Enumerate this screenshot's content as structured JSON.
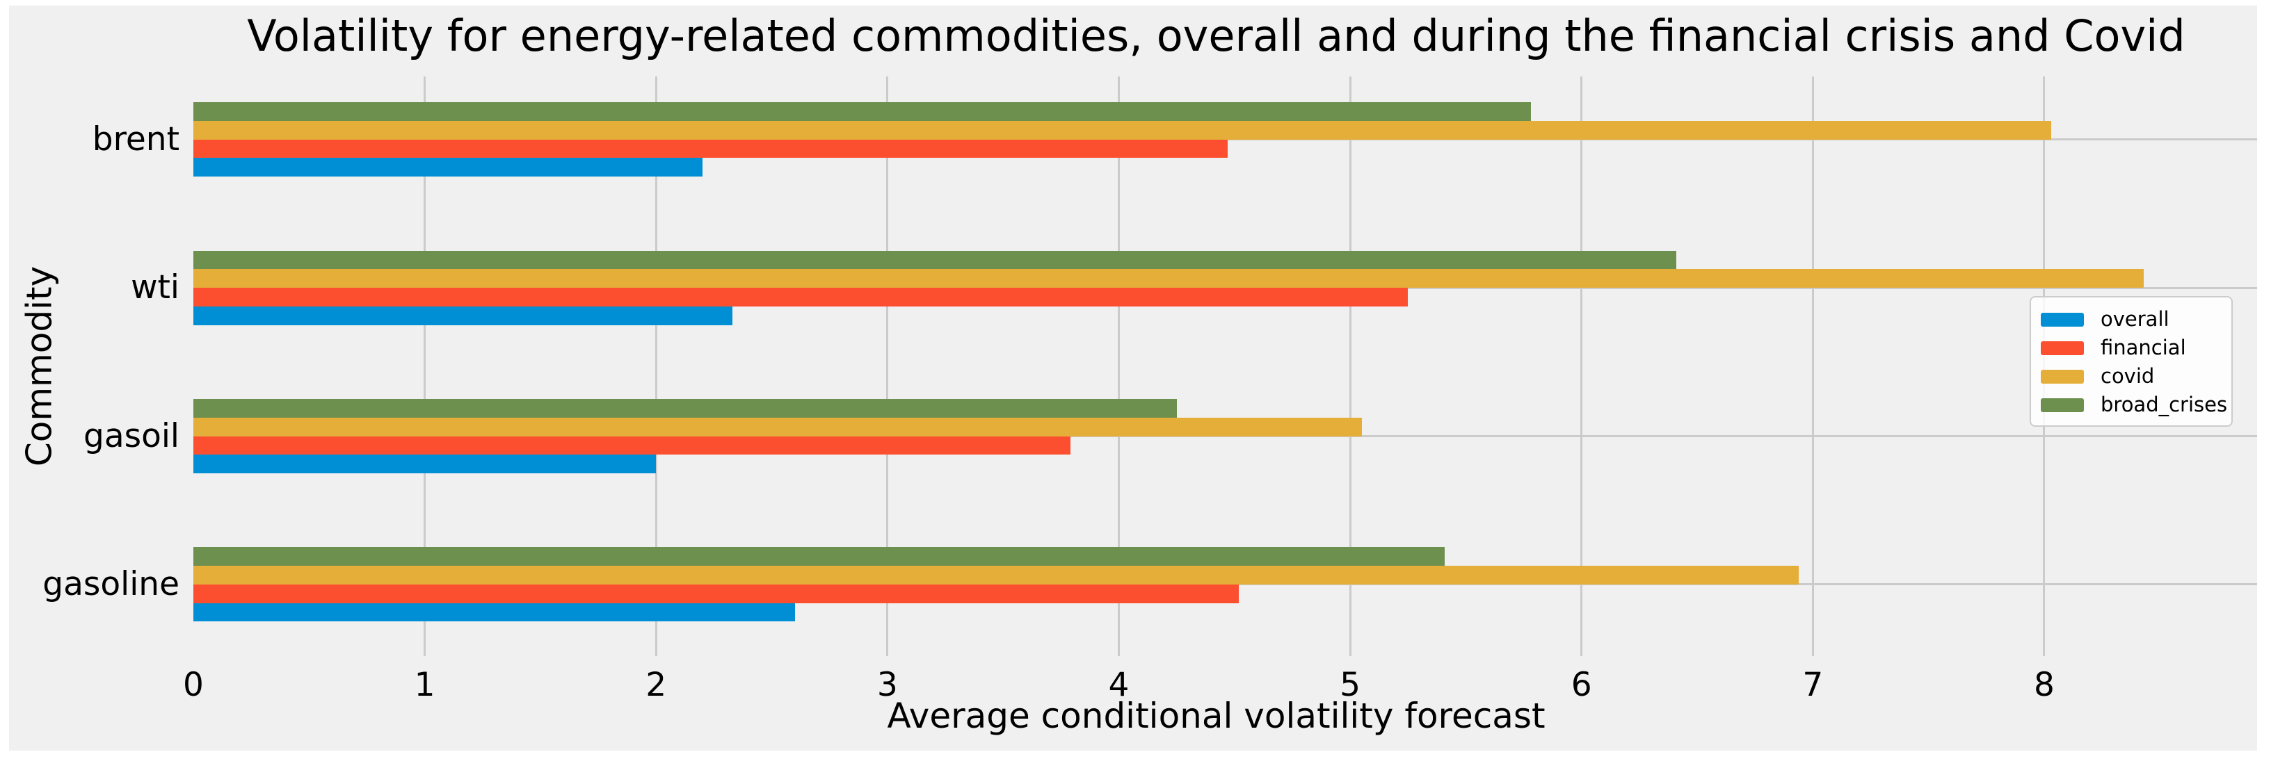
{
  "figure": {
    "background_color": "#f0f0f0",
    "grid_color": "#cbcbcb",
    "text_color": "#000000"
  },
  "chart_data": {
    "type": "bar",
    "orientation": "horizontal",
    "title": "Volatility for energy-related commodities, overall and during the financial crisis and Covid",
    "xlabel": "Average conditional volatility forecast",
    "ylabel": "Commodity",
    "categories": [
      "brent",
      "wti",
      "gasoil",
      "gasoline"
    ],
    "series": [
      {
        "name": "overall",
        "color": "#008fd5",
        "values": [
          2.2,
          2.33,
          2.0,
          2.6
        ]
      },
      {
        "name": "financial",
        "color": "#fc4f30",
        "values": [
          4.47,
          5.25,
          3.79,
          4.52
        ]
      },
      {
        "name": "covid",
        "color": "#e5ae38",
        "values": [
          8.03,
          8.43,
          5.05,
          6.94
        ]
      },
      {
        "name": "broad_crises",
        "color": "#6d904f",
        "values": [
          5.78,
          6.41,
          4.25,
          5.41
        ]
      }
    ],
    "xlim": [
      0,
      8.92
    ],
    "xticks": [
      0,
      1,
      2,
      3,
      4,
      5,
      6,
      7,
      8
    ],
    "grid": true,
    "legend_position": "upper right",
    "legend_labels": [
      "overall",
      "financial",
      "covid",
      "broad_crises"
    ]
  }
}
